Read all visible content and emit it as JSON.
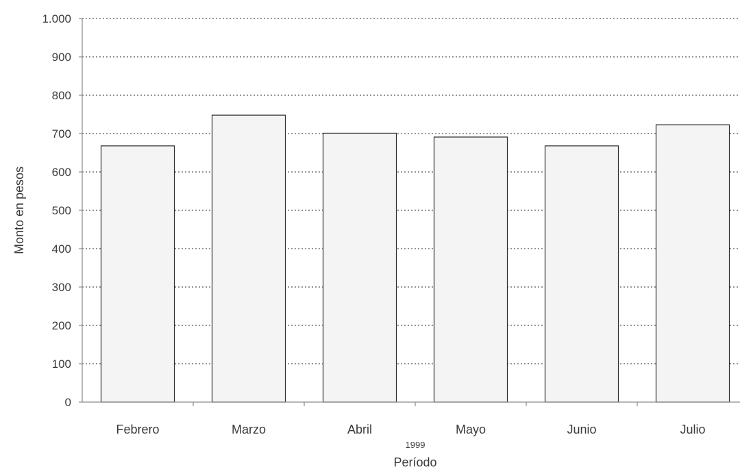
{
  "chart_data": {
    "type": "bar",
    "title": "",
    "xlabel": "Período",
    "x_sublabel": "1999",
    "ylabel": "Monto en pesos",
    "categories": [
      "Febrero",
      "Marzo",
      "Abril",
      "Mayo",
      "Junio",
      "Julio"
    ],
    "values": [
      668,
      748,
      701,
      691,
      668,
      723
    ],
    "ylim": [
      0,
      1000
    ],
    "yticks": [
      0,
      100,
      200,
      300,
      400,
      500,
      600,
      700,
      800,
      900,
      1000
    ],
    "ytick_labels": [
      "0",
      "100",
      "200",
      "300",
      "400",
      "500",
      "600",
      "700",
      "800",
      "900",
      "1.000"
    ],
    "grid": true,
    "grid_style": "dotted",
    "legend": "none",
    "colors": {
      "bar_fill": "#f4f4f4",
      "bar_stroke": "#2a2a2a",
      "grid": "#555555",
      "text": "#3a3a3a"
    }
  }
}
